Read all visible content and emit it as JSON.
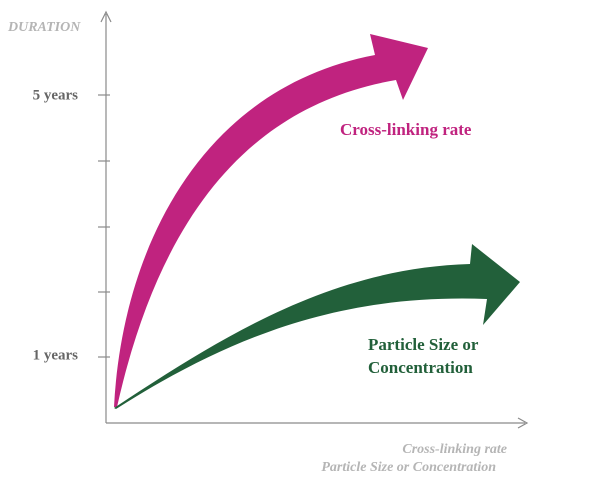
{
  "y_axis": {
    "title": "DURATION",
    "tick_labels": [
      "5 years",
      "1 years"
    ]
  },
  "x_axis": {
    "title_lines": [
      "Cross-linking rate",
      "Particle Size or Concentration"
    ]
  },
  "arrows": [
    {
      "label_lines": [
        "Cross-linking rate"
      ]
    },
    {
      "label_lines": [
        "Particle Size or",
        "Concentration"
      ]
    }
  ]
}
